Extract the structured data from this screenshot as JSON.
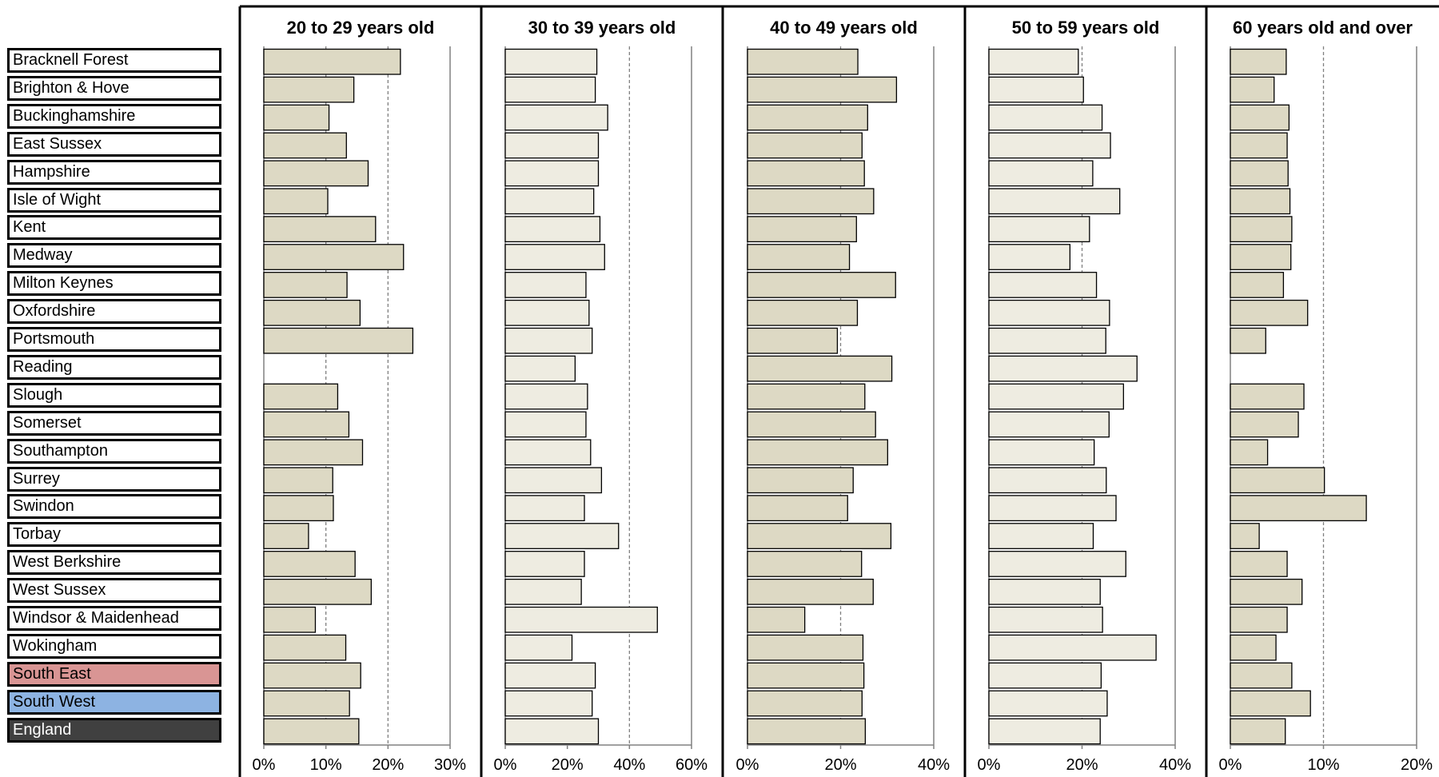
{
  "regions": [
    "Bracknell Forest",
    "Brighton & Hove",
    "Buckinghamshire",
    "East Sussex",
    "Hampshire",
    "Isle of Wight",
    "Kent",
    "Medway",
    "Milton Keynes",
    "Oxfordshire",
    "Portsmouth",
    "Reading",
    "Slough",
    "Somerset",
    "Southampton",
    "Surrey",
    "Swindon",
    "Torbay",
    "West Berkshire",
    "West Sussex",
    "Windsor & Maidenhead",
    "Wokingham",
    "South East",
    "South West",
    "England"
  ],
  "highlight_colors": {
    "South East": "#d99594",
    "South West": "#8db3e2",
    "England": "#404040"
  },
  "colors": {
    "bar_dark": "#ddd9c4",
    "bar_light": "#eeece1",
    "grid": "#808080"
  },
  "chart_data": [
    {
      "type": "bar",
      "orientation": "horizontal",
      "title": "20 to 29 years old",
      "xlim": [
        0,
        30
      ],
      "ticks": [
        "0%",
        "10%",
        "20%",
        "30%"
      ],
      "reference_line": 10,
      "reference_line_2": 20,
      "values": [
        22,
        14.5,
        10.5,
        13.3,
        16.8,
        10.3,
        18,
        22.5,
        13.4,
        15.5,
        24,
        null,
        11.9,
        13.7,
        15.9,
        11.1,
        11.2,
        7.2,
        14.7,
        17.3,
        8.3,
        13.2,
        15.6,
        13.8,
        15.3
      ]
    },
    {
      "type": "bar",
      "orientation": "horizontal",
      "title": "30 to 39 years old",
      "xlim": [
        0,
        60
      ],
      "ticks": [
        "0%",
        "20%",
        "40%",
        "60%"
      ],
      "reference_line": 40,
      "values": [
        29.5,
        29,
        33,
        30,
        30,
        28.5,
        30.5,
        32,
        26,
        27,
        28,
        22.5,
        26.5,
        26,
        27.5,
        31,
        25.5,
        36.5,
        25.5,
        24.5,
        49,
        21.5,
        29,
        28,
        30
      ]
    },
    {
      "type": "bar",
      "orientation": "horizontal",
      "title": "40 to 49 years old",
      "xlim": [
        0,
        40
      ],
      "ticks": [
        "0%",
        "20%",
        "40%"
      ],
      "reference_line": 20,
      "values": [
        23.7,
        32,
        25.8,
        24.6,
        25.1,
        27.1,
        23.4,
        21.9,
        31.8,
        23.6,
        19.3,
        31,
        25.2,
        27.5,
        30.1,
        22.7,
        21.5,
        30.8,
        24.5,
        27,
        12.3,
        24.8,
        25,
        24.6,
        25.3
      ]
    },
    {
      "type": "bar",
      "orientation": "horizontal",
      "title": "50 to 59 years old",
      "xlim": [
        0,
        40
      ],
      "ticks": [
        "0%",
        "20%",
        "40%"
      ],
      "reference_line": 20,
      "values": [
        19.2,
        20.3,
        24.3,
        26.1,
        22.3,
        28.1,
        21.6,
        17.4,
        23.1,
        25.9,
        25.1,
        31.8,
        28.9,
        25.8,
        22.6,
        25.2,
        27.3,
        22.4,
        29.4,
        23.9,
        24.4,
        35.9,
        24.1,
        25.4,
        23.9
      ]
    },
    {
      "type": "bar",
      "orientation": "horizontal",
      "title": "60 years old and over",
      "xlim": [
        0,
        20
      ],
      "ticks": [
        "0%",
        "10%",
        "20%"
      ],
      "reference_line": 10,
      "values": [
        6,
        4.7,
        6.3,
        6.1,
        6.2,
        6.4,
        6.6,
        6.5,
        5.7,
        8.3,
        3.8,
        null,
        7.9,
        7.3,
        4,
        10.1,
        14.6,
        3.1,
        6.1,
        7.7,
        6.1,
        4.9,
        6.6,
        8.6,
        5.9
      ]
    }
  ]
}
